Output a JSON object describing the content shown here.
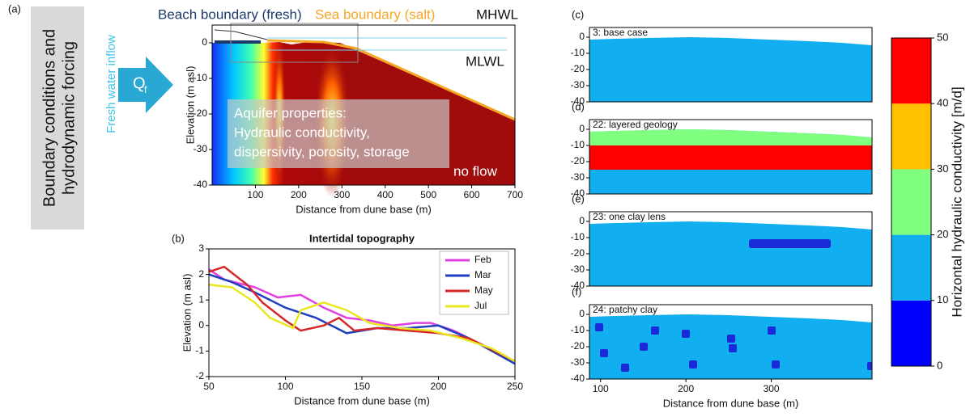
{
  "chart_data": [
    {
      "type": "section",
      "panel": "(a)",
      "xlim": [
        0,
        700
      ],
      "ylim": [
        -40,
        5
      ],
      "xticks": [
        100,
        200,
        300,
        400,
        500,
        600,
        700
      ],
      "yticks": [
        0,
        -10,
        -20,
        -30,
        -40
      ],
      "xlabel": "Distance from dune base (m)",
      "ylabel": "Elevation (m asl)",
      "annotations": [
        "Beach boundary (fresh)",
        "Sea boundary (salt)",
        "MHWL",
        "MLWL",
        "no flow",
        "Aquifer properties:",
        "Hydraulic conductivity,",
        "dispersivity, porosity, storage"
      ],
      "side_label": [
        "Boundary conditions and",
        "hydrodynamic forcing"
      ],
      "inflow_label": "Fresh water inflow",
      "inflow_symbol": "Q",
      "inflow_subscript": "f"
    },
    {
      "type": "line",
      "panel": "(b)",
      "title": "Intertidal topography",
      "xlim": [
        50,
        250
      ],
      "ylim": [
        -2,
        3
      ],
      "xticks": [
        50,
        100,
        150,
        200,
        250
      ],
      "yticks": [
        -2,
        -1,
        0,
        1,
        2,
        3
      ],
      "xlabel": "Distance from dune base (m)",
      "ylabel": "Elevation (m asl)",
      "series": [
        {
          "name": "Feb",
          "color": "#e040e0",
          "x": [
            50,
            60,
            80,
            95,
            110,
            125,
            140,
            155,
            170,
            185,
            195,
            210,
            230,
            250
          ],
          "values": [
            2.2,
            1.8,
            1.5,
            1.1,
            1.2,
            0.7,
            0.3,
            0.2,
            0.0,
            0.1,
            0.1,
            -0.2,
            -0.8,
            -1.4
          ]
        },
        {
          "name": "Mar",
          "color": "#1f3fbf",
          "x": [
            50,
            65,
            80,
            100,
            120,
            140,
            160,
            180,
            200,
            220,
            250
          ],
          "values": [
            2.0,
            1.7,
            1.3,
            0.7,
            0.3,
            -0.3,
            -0.1,
            -0.1,
            0.0,
            -0.5,
            -1.5
          ]
        },
        {
          "name": "May",
          "color": "#d62728",
          "x": [
            50,
            60,
            75,
            85,
            100,
            110,
            125,
            135,
            145,
            160,
            180,
            200,
            220,
            250
          ],
          "values": [
            2.1,
            2.3,
            1.6,
            0.9,
            0.2,
            -0.2,
            0.0,
            0.3,
            -0.2,
            -0.1,
            -0.2,
            -0.3,
            -0.5,
            -1.4
          ]
        },
        {
          "name": "Jul",
          "color": "#e8e820",
          "x": [
            50,
            65,
            80,
            90,
            105,
            110,
            125,
            140,
            155,
            175,
            195,
            215,
            235,
            250
          ],
          "values": [
            1.6,
            1.5,
            0.9,
            0.3,
            -0.1,
            0.6,
            0.9,
            0.6,
            0.1,
            -0.1,
            -0.2,
            -0.5,
            -0.9,
            -1.4
          ]
        }
      ]
    },
    {
      "type": "section",
      "panel": "(c)",
      "title": "3: base case",
      "xlim": [
        87,
        418
      ],
      "ylim": [
        -40,
        6
      ],
      "yticks": [
        0,
        -10,
        -20,
        -30,
        -40
      ]
    },
    {
      "type": "section",
      "panel": "(d)",
      "title": "22: layered geology",
      "xlim": [
        87,
        418
      ],
      "ylim": [
        -40,
        6
      ],
      "yticks": [
        0,
        -10,
        -20,
        -30,
        -40
      ]
    },
    {
      "type": "section",
      "panel": "(e)",
      "title": "23: one clay lens",
      "xlim": [
        87,
        418
      ],
      "ylim": [
        -40,
        6
      ],
      "yticks": [
        0,
        -10,
        -20,
        -30,
        -40
      ]
    },
    {
      "type": "section",
      "panel": "(f)",
      "title": "24: patchy clay",
      "xlim": [
        87,
        418
      ],
      "ylim": [
        -40,
        6
      ],
      "yticks": [
        0,
        -10,
        -20,
        -30,
        -40
      ],
      "xticks": [
        100,
        200,
        300
      ],
      "xlabel": "Distance from dune base (m)"
    },
    {
      "type": "colorbar",
      "ylabel": "Horizontal hydraulic conductivity [m/d]",
      "bins": [
        0,
        10,
        20,
        30,
        40,
        50
      ],
      "colors": [
        "#0000ff",
        "#12aff0",
        "#80ff80",
        "#ffc000",
        "#ff0000"
      ],
      "ylim": [
        0,
        50
      ],
      "yticks": [
        0,
        10,
        20,
        30,
        40,
        50
      ]
    }
  ]
}
